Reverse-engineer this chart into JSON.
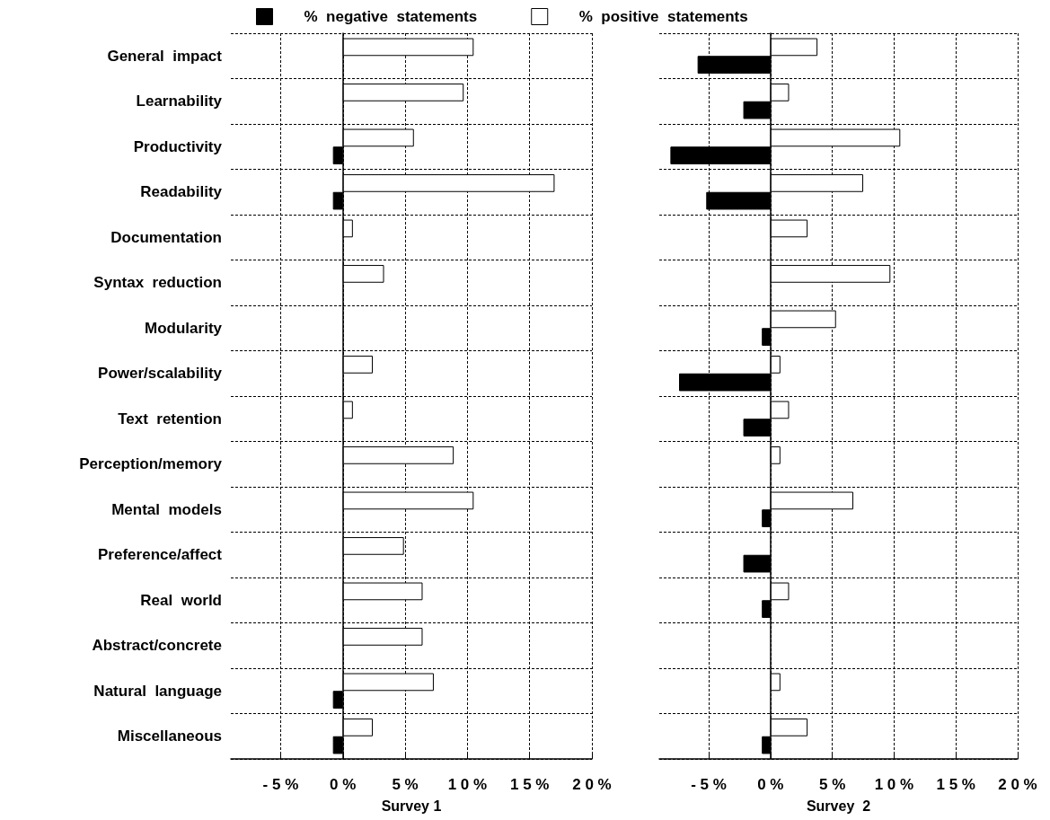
{
  "chart_data": [
    {
      "type": "bar",
      "orientation": "horizontal",
      "xlabel": "Survey 1",
      "legend": "top",
      "grid": true,
      "categories": [
        "General  impact",
        "Learnability",
        "Productivity",
        "Readability",
        "Documentation",
        "Syntax  reduction",
        "Modularity",
        "Power/scalability",
        "Text  retention",
        "Perception/memory",
        "Mental  models",
        "Preference/affect",
        "Real  world",
        "Abstract/concrete",
        "Natural  language",
        "Miscellaneous"
      ],
      "xlim": [
        -9,
        20
      ],
      "xticks": [
        {
          "value": -5,
          "label": "- 5 %"
        },
        {
          "value": 0,
          "label": "0 %"
        },
        {
          "value": 5,
          "label": "5 %"
        },
        {
          "value": 10,
          "label": "1 0 %"
        },
        {
          "value": 15,
          "label": "1 5 %"
        },
        {
          "value": 20,
          "label": "2 0 %"
        }
      ],
      "series": [
        {
          "name": "%  positive  statements",
          "color": "#ffffff",
          "values": [
            10.5,
            9.7,
            5.7,
            17.0,
            0.8,
            3.3,
            null,
            2.4,
            0.8,
            8.9,
            10.5,
            4.9,
            6.4,
            6.4,
            7.3,
            2.4
          ]
        },
        {
          "name": "%  negative  statements",
          "color": "#000000",
          "values": [
            null,
            null,
            -0.8,
            -0.8,
            null,
            null,
            null,
            null,
            null,
            null,
            null,
            null,
            null,
            null,
            -0.8,
            -0.8
          ]
        }
      ]
    },
    {
      "type": "bar",
      "orientation": "horizontal",
      "xlabel": "Survey  2",
      "grid": true,
      "tick_labels": "x",
      "categories": [
        null,
        null,
        null,
        null,
        null,
        null,
        null,
        null,
        null,
        null,
        null,
        null,
        null,
        null,
        null,
        null
      ],
      "xlim": [
        -9,
        20
      ],
      "xticks": [
        {
          "value": -5,
          "label": "- 5 %"
        },
        {
          "value": 0,
          "label": "0 %"
        },
        {
          "value": 5,
          "label": "5 %"
        },
        {
          "value": 10,
          "label": "1 0 %"
        },
        {
          "value": 15,
          "label": "1 5 %"
        },
        {
          "value": 20,
          "label": "2 0 %"
        }
      ],
      "series": [
        {
          "color": "#ffffff",
          "values": [
            3.8,
            1.5,
            10.5,
            7.5,
            3.0,
            9.7,
            5.3,
            0.8,
            1.5,
            0.8,
            6.7,
            null,
            1.5,
            null,
            0.8,
            3.0
          ]
        },
        {
          "color": "#000000",
          "values": [
            -5.9,
            -2.2,
            -8.1,
            -5.2,
            null,
            null,
            -0.7,
            -7.4,
            -2.2,
            null,
            -0.7,
            -2.2,
            -0.7,
            null,
            null,
            -0.7
          ]
        }
      ]
    }
  ]
}
